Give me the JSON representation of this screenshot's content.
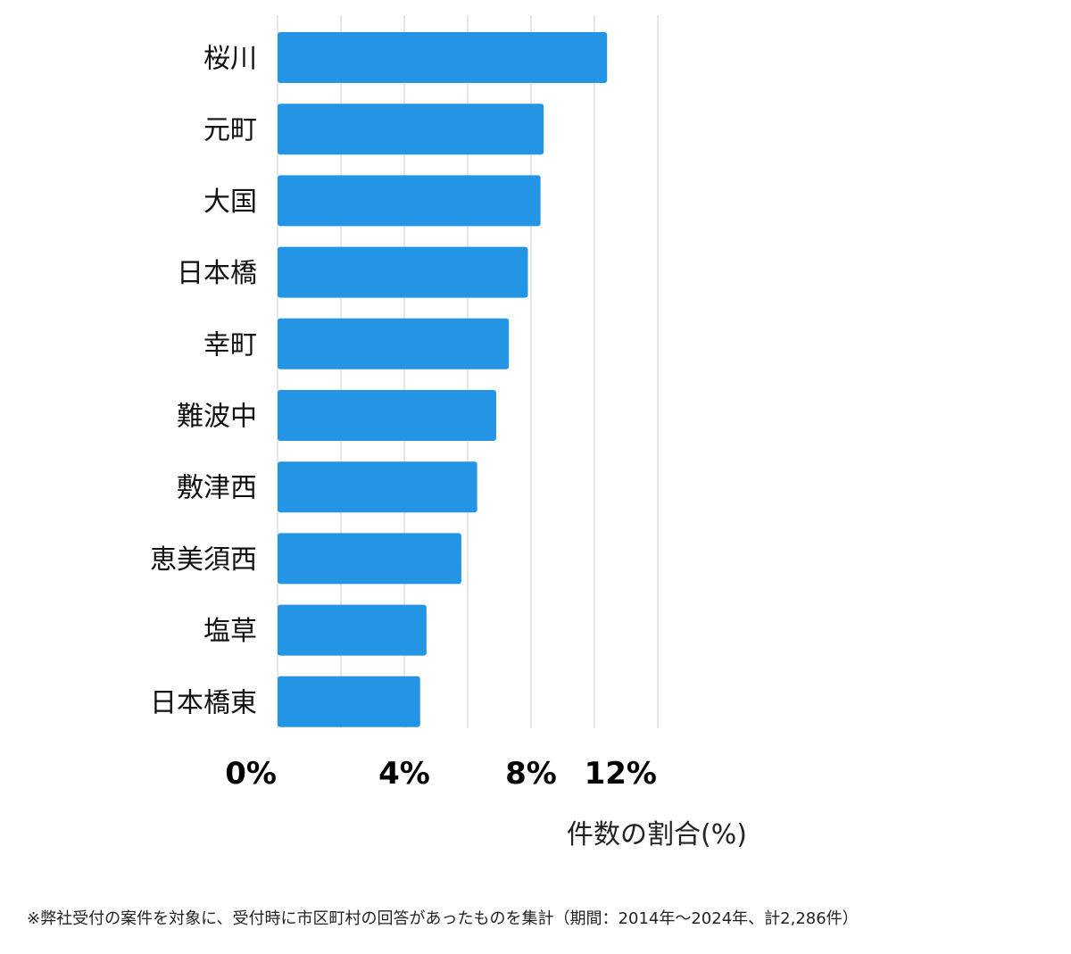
{
  "chart_data": {
    "type": "bar",
    "orientation": "horizontal",
    "categories": [
      "桜川",
      "元町",
      "大国",
      "日本橋",
      "幸町",
      "難波中",
      "敷津西",
      "恵美須西",
      "塩草",
      "日本橋東"
    ],
    "values": [
      10.4,
      8.4,
      8.3,
      7.9,
      7.3,
      6.9,
      6.3,
      5.8,
      4.7,
      4.5
    ],
    "x_ticks": [
      "0%",
      "4%",
      "8%",
      "12%"
    ],
    "xlim": [
      0,
      12
    ],
    "xlabel": "件数の割合(%)",
    "grid": true,
    "bar_color": "#2494e5",
    "grid_color": "#dddddd"
  },
  "footnote": "※弊社受付の案件を対象に、受付時に市区町村の回答があったものを集計（期間：2014年～2024年、計2,286件）"
}
